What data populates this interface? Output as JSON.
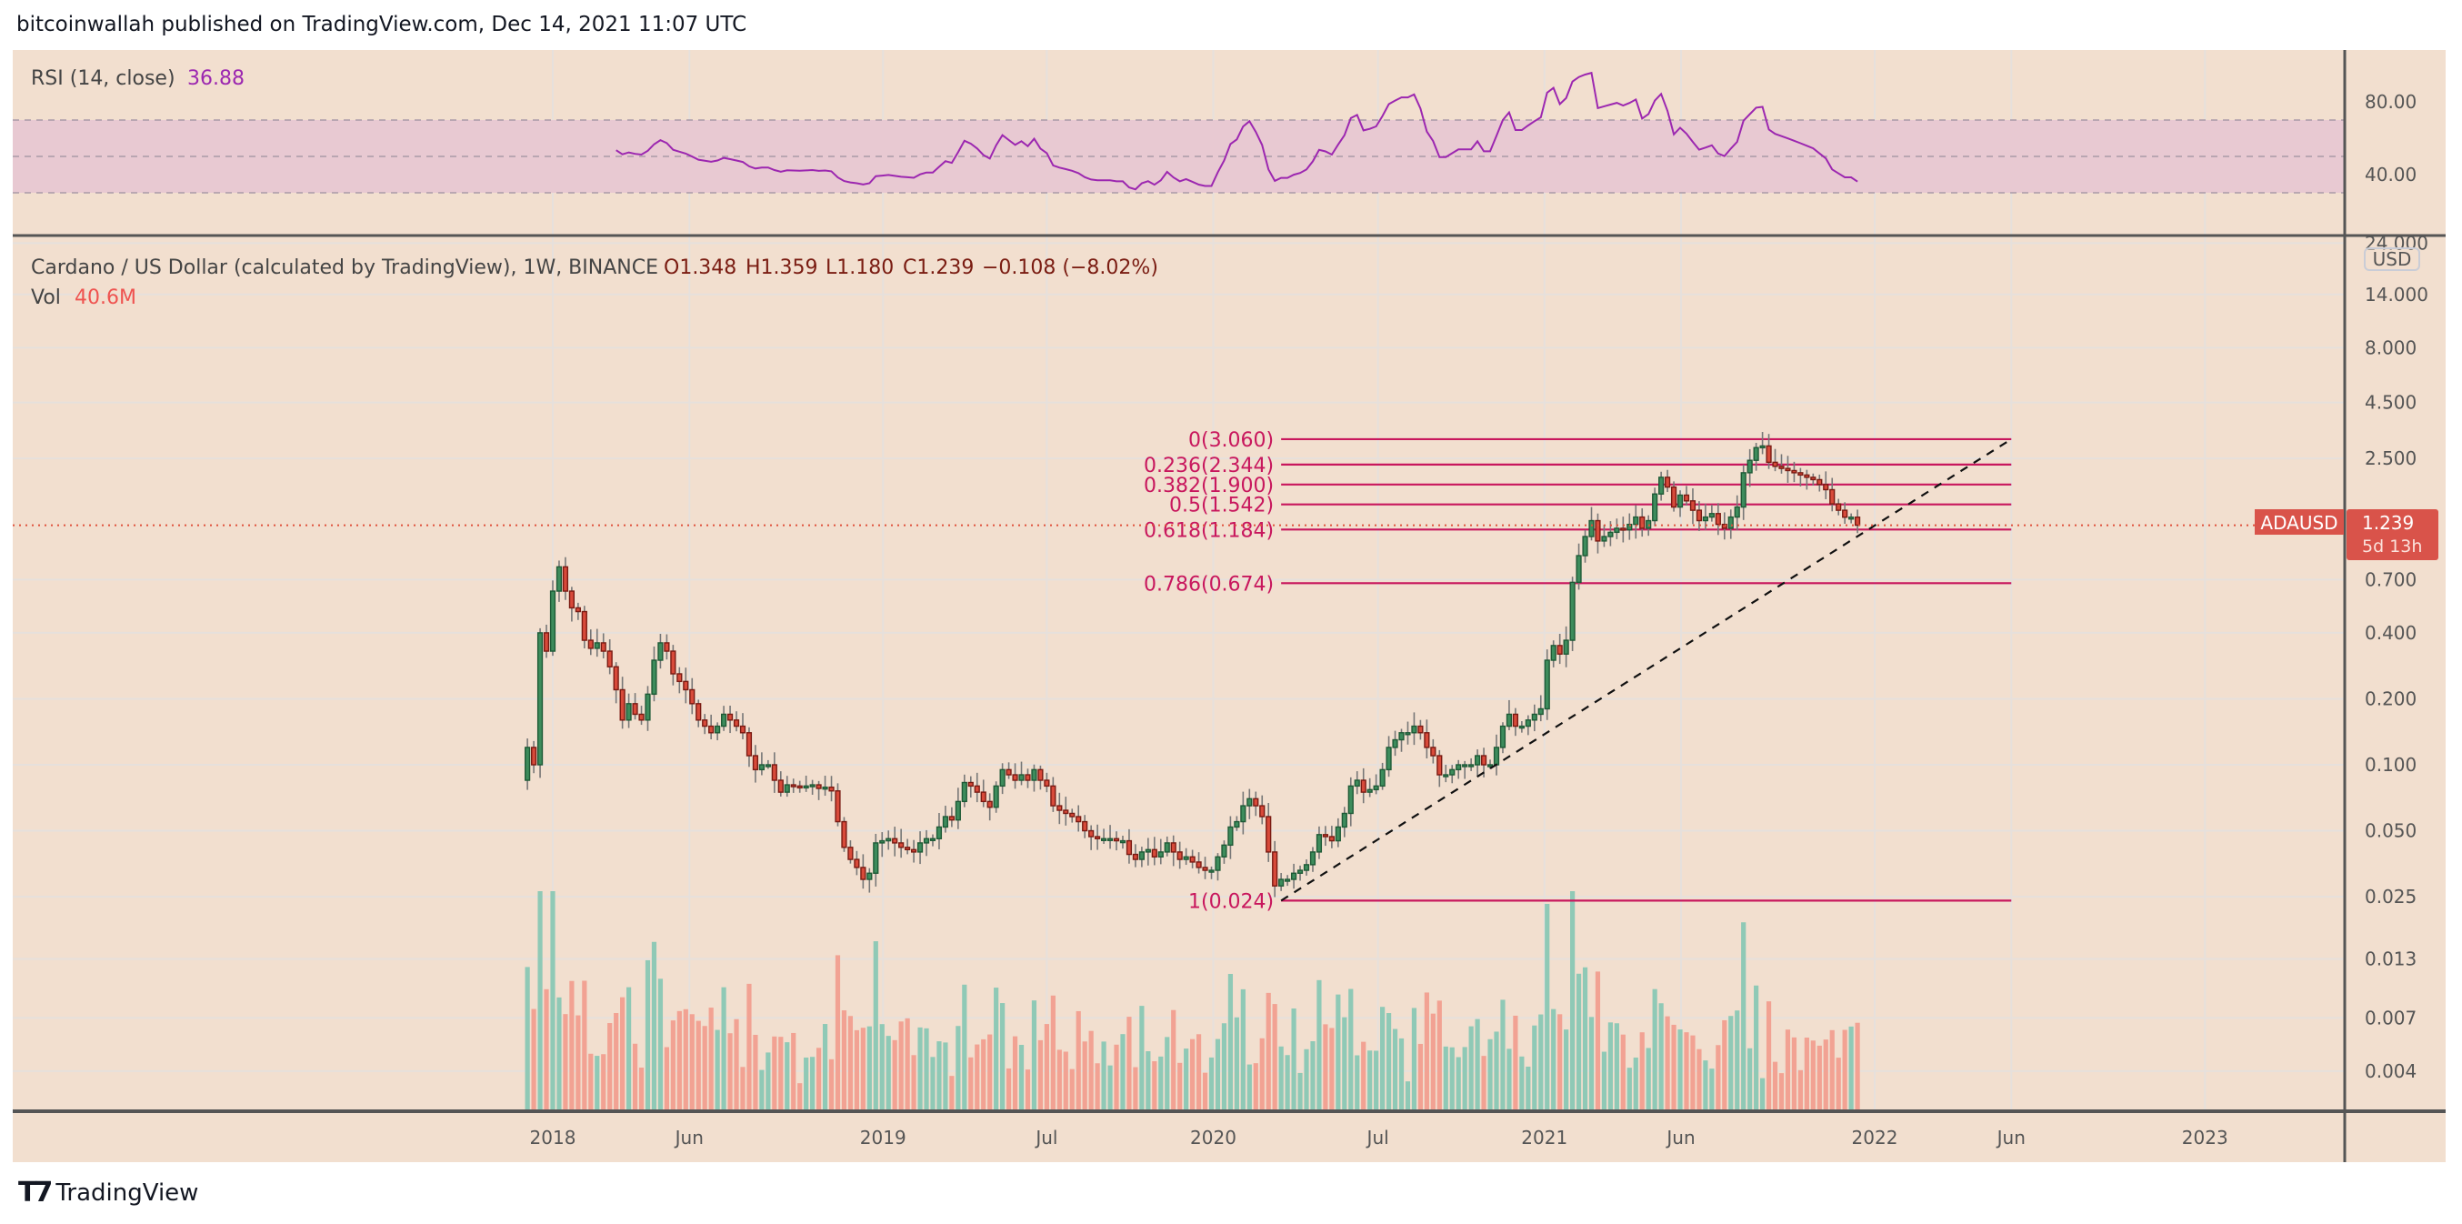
{
  "header": {
    "published": "bitcoinwallah published on TradingView.com, Dec 14, 2021 11:07 UTC"
  },
  "footer": {
    "logo_text": "TradingView"
  },
  "colors": {
    "background": "#f2dfcf",
    "up": "#3d8c5c",
    "down": "#d84a3a",
    "fib": "#c8175d",
    "rsi": "#9c27b0",
    "price_line": "#e0513c"
  },
  "rsi": {
    "label": "RSI (14, close)",
    "value": "36.88",
    "axis": [
      {
        "v": 80,
        "t": "80.00"
      },
      {
        "v": 40,
        "t": "40.00"
      }
    ]
  },
  "legend": {
    "symbol": "Cardano / US Dollar (calculated by TradingView), 1W, BINANCE",
    "open": "O1.348",
    "high": "H1.359",
    "low": "L1.180",
    "close": "C1.239",
    "change": "−0.108 (−8.02%)",
    "vol_label": "Vol",
    "vol_value": "40.6M"
  },
  "price_axis": {
    "currency": "USD",
    "ticks": [
      {
        "v": 24,
        "t": "24.000"
      },
      {
        "v": 14,
        "t": "14.000"
      },
      {
        "v": 8,
        "t": "8.000"
      },
      {
        "v": 4.5,
        "t": "4.500"
      },
      {
        "v": 2.5,
        "t": "2.500"
      },
      {
        "v": 0.7,
        "t": "0.700"
      },
      {
        "v": 0.4,
        "t": "0.400"
      },
      {
        "v": 0.2,
        "t": "0.200"
      },
      {
        "v": 0.1,
        "t": "0.100"
      },
      {
        "v": 0.05,
        "t": "0.050"
      },
      {
        "v": 0.025,
        "t": "0.025"
      },
      {
        "v": 0.013,
        "t": "0.013"
      },
      {
        "v": 0.007,
        "t": "0.007"
      },
      {
        "v": 0.004,
        "t": "0.004"
      }
    ],
    "current_price": "1.239",
    "countdown": "5d 13h",
    "symbol_tag": "ADAUSD"
  },
  "time_axis": [
    {
      "t": "2018",
      "d": "2018-01-01"
    },
    {
      "t": "Jun",
      "d": "2018-06-01"
    },
    {
      "t": "2019",
      "d": "2019-01-01"
    },
    {
      "t": "Jul",
      "d": "2019-07-01"
    },
    {
      "t": "2020",
      "d": "2020-01-01"
    },
    {
      "t": "Jul",
      "d": "2020-07-01"
    },
    {
      "t": "2021",
      "d": "2021-01-01"
    },
    {
      "t": "Jun",
      "d": "2021-06-01"
    },
    {
      "t": "2022",
      "d": "2022-01-01"
    },
    {
      "t": "Jun",
      "d": "2022-06-01"
    },
    {
      "t": "2023",
      "d": "2023-01-01"
    }
  ],
  "chart_data": {
    "type": "candlestick",
    "title": "Cardano / US Dollar, 1W, BINANCE",
    "scale": "log",
    "ylim": [
      0.0025,
      30
    ],
    "first_week": "2017-12-04",
    "first_open": 0.085,
    "closes": [
      0.12,
      0.1,
      0.4,
      0.33,
      0.62,
      0.8,
      0.62,
      0.52,
      0.5,
      0.37,
      0.34,
      0.36,
      0.33,
      0.28,
      0.22,
      0.16,
      0.19,
      0.17,
      0.16,
      0.21,
      0.3,
      0.36,
      0.33,
      0.26,
      0.24,
      0.22,
      0.19,
      0.16,
      0.15,
      0.14,
      0.15,
      0.17,
      0.16,
      0.15,
      0.14,
      0.11,
      0.095,
      0.1,
      0.1,
      0.085,
      0.075,
      0.081,
      0.08,
      0.079,
      0.08,
      0.081,
      0.078,
      0.079,
      0.076,
      0.055,
      0.042,
      0.037,
      0.034,
      0.03,
      0.032,
      0.044,
      0.045,
      0.046,
      0.044,
      0.042,
      0.041,
      0.04,
      0.044,
      0.046,
      0.046,
      0.052,
      0.058,
      0.056,
      0.068,
      0.083,
      0.08,
      0.075,
      0.068,
      0.064,
      0.08,
      0.095,
      0.09,
      0.085,
      0.09,
      0.085,
      0.095,
      0.085,
      0.08,
      0.065,
      0.062,
      0.06,
      0.058,
      0.055,
      0.05,
      0.047,
      0.046,
      0.046,
      0.046,
      0.045,
      0.045,
      0.039,
      0.037,
      0.04,
      0.041,
      0.038,
      0.04,
      0.044,
      0.04,
      0.037,
      0.038,
      0.036,
      0.034,
      0.033,
      0.033,
      0.038,
      0.043,
      0.052,
      0.055,
      0.065,
      0.07,
      0.065,
      0.058,
      0.04,
      0.028,
      0.03,
      0.03,
      0.032,
      0.033,
      0.035,
      0.04,
      0.048,
      0.047,
      0.045,
      0.052,
      0.06,
      0.08,
      0.085,
      0.075,
      0.077,
      0.08,
      0.095,
      0.12,
      0.13,
      0.14,
      0.14,
      0.15,
      0.14,
      0.12,
      0.11,
      0.09,
      0.09,
      0.095,
      0.1,
      0.1,
      0.1,
      0.11,
      0.1,
      0.1,
      0.12,
      0.15,
      0.17,
      0.15,
      0.15,
      0.16,
      0.17,
      0.18,
      0.3,
      0.35,
      0.32,
      0.37,
      0.68,
      0.9,
      1.1,
      1.3,
      1.05,
      1.1,
      1.15,
      1.2,
      1.18,
      1.25,
      1.35,
      1.2,
      1.3,
      1.72,
      2.05,
      1.85,
      1.5,
      1.7,
      1.6,
      1.45,
      1.3,
      1.35,
      1.4,
      1.25,
      1.2,
      1.35,
      1.5,
      2.15,
      2.45,
      2.8,
      2.85,
      2.4,
      2.3,
      2.25,
      2.2,
      2.15,
      2.1,
      2.05,
      2.0,
      1.9,
      1.8,
      1.55,
      1.45,
      1.348,
      1.348,
      1.239
    ],
    "fib_levels": [
      {
        "ratio": "0",
        "price": 3.06,
        "label": "0(3.060)"
      },
      {
        "ratio": "0.236",
        "price": 2.344,
        "label": "0.236(2.344)"
      },
      {
        "ratio": "0.382",
        "price": 1.9,
        "label": "0.382(1.900)"
      },
      {
        "ratio": "0.5",
        "price": 1.542,
        "label": "0.5(1.542)"
      },
      {
        "ratio": "0.618",
        "price": 1.184,
        "label": "0.618(1.184)"
      },
      {
        "ratio": "0.786",
        "price": 0.674,
        "label": "0.786(0.674)"
      },
      {
        "ratio": "1",
        "price": 0.024,
        "label": "1(0.024)"
      }
    ],
    "fib_start": "2020-03-16",
    "fib_end": "2022-06-01",
    "trendline": [
      {
        "d": "2020-03-16",
        "p": 0.024
      },
      {
        "d": "2022-06-01",
        "p": 3.06
      }
    ],
    "rsi_period": 14,
    "rsi_range": [
      0,
      100
    ]
  }
}
